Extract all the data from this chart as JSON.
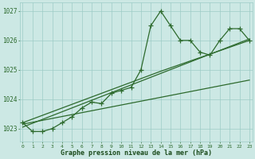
{
  "x_values": [
    0,
    1,
    2,
    3,
    4,
    5,
    6,
    7,
    8,
    9,
    10,
    11,
    12,
    13,
    14,
    15,
    16,
    17,
    18,
    19,
    20,
    21,
    22,
    23
  ],
  "y_main": [
    1023.2,
    1022.9,
    1022.9,
    1023.0,
    1023.2,
    1023.4,
    1023.7,
    1023.9,
    1023.85,
    1024.2,
    1024.3,
    1024.4,
    1025.0,
    1026.5,
    1027.0,
    1026.5,
    1026.0,
    1026.0,
    1025.6,
    1025.5,
    1026.0,
    1026.4,
    1026.4,
    1026.0
  ],
  "line1_x": [
    0,
    23
  ],
  "line1_y": [
    1023.05,
    1026.05
  ],
  "line2_x": [
    0,
    23
  ],
  "line2_y": [
    1023.15,
    1024.65
  ],
  "line3_x": [
    0,
    14,
    23
  ],
  "line3_y": [
    1023.2,
    1024.95,
    1026.0
  ],
  "ylim": [
    1022.55,
    1027.3
  ],
  "yticks": [
    1023,
    1024,
    1025,
    1026,
    1027
  ],
  "xticks": [
    0,
    1,
    2,
    3,
    4,
    5,
    6,
    7,
    8,
    9,
    10,
    11,
    12,
    13,
    14,
    15,
    16,
    17,
    18,
    19,
    20,
    21,
    22,
    23
  ],
  "xlabel": "Graphe pression niveau de la mer (hPa)",
  "line_color": "#2d6a2d",
  "bg_color": "#cce8e4",
  "grid_color": "#9eccc6",
  "title_color": "#1a4a1a",
  "marker_size": 4,
  "linewidth": 0.9
}
